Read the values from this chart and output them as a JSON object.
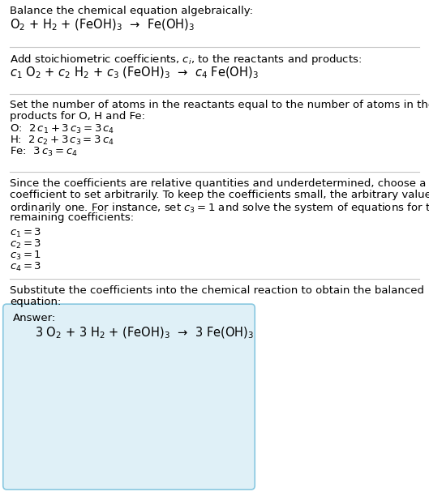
{
  "section1_title": "Balance the chemical equation algebraically:",
  "section1_eq": "O$_2$ + H$_2$ + (FeOH)$_3$  →  Fe(OH)$_3$",
  "section2_intro": "Add stoichiometric coefficients, $c_i$, to the reactants and products:",
  "section2_eq": "$c_1$ O$_2$ + $c_2$ H$_2$ + $c_3$ (FeOH)$_3$  →  $c_4$ Fe(OH)$_3$",
  "section3_title": "Set the number of atoms in the reactants equal to the number of atoms in the\nproducts for O, H and Fe:",
  "section3_O": "O:  $2\\,c_1 + 3\\,c_3 = 3\\,c_4$",
  "section3_H": "H:  $2\\,c_2 + 3\\,c_3 = 3\\,c_4$",
  "section3_Fe": "Fe:  $3\\,c_3 = c_4$",
  "section4_intro_parts": [
    "Since the coefficients are relative quantities and underdetermined, choose a",
    "coefficient to set arbitrarily. To keep the coefficients small, the arbitrary value is",
    "ordinarily one. For instance, set $c_3 = 1$ and solve the system of equations for the",
    "remaining coefficients:"
  ],
  "section4_c1": "$c_1 = 3$",
  "section4_c2": "$c_2 = 3$",
  "section4_c3": "$c_3 = 1$",
  "section4_c4": "$c_4 = 3$",
  "section5_intro": "Substitute the coefficients into the chemical reaction to obtain the balanced\nequation:",
  "answer_label": "Answer:",
  "answer_eq": "3 O$_2$ + 3 H$_2$ + (FeOH)$_3$  →  3 Fe(OH)$_3$",
  "bg_color": "#ffffff",
  "text_color": "#000000",
  "line_color": "#c8c8c8",
  "answer_bg": "#dff0f7",
  "answer_border": "#88c8e0",
  "font_size_body": 9.5,
  "font_size_eq": 10.5
}
